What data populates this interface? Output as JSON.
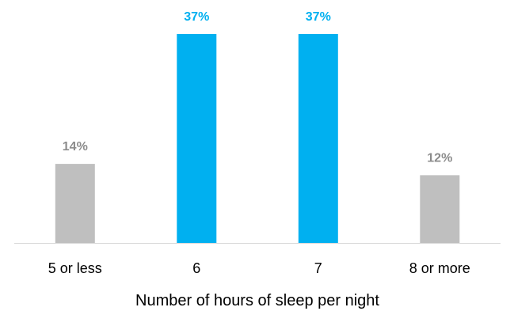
{
  "chart_data": {
    "type": "bar",
    "title": "",
    "xlabel": "Number of hours of sleep per night",
    "ylabel": "",
    "categories": [
      "5 or less",
      "6",
      "7",
      "8 or more"
    ],
    "values": [
      14,
      37,
      37,
      12
    ],
    "value_labels": [
      "14%",
      "37%",
      "37%",
      "12%"
    ],
    "ylim": [
      0,
      37
    ],
    "grid": false,
    "legend": "none",
    "colors": {
      "highlight": "#00B0F0",
      "default": "#BFBFBF",
      "highlight_label": "#00B0F0",
      "default_label": "#8C8C8C",
      "axis_line": "#D9D9D9"
    },
    "highlighted": [
      false,
      true,
      true,
      false
    ]
  }
}
